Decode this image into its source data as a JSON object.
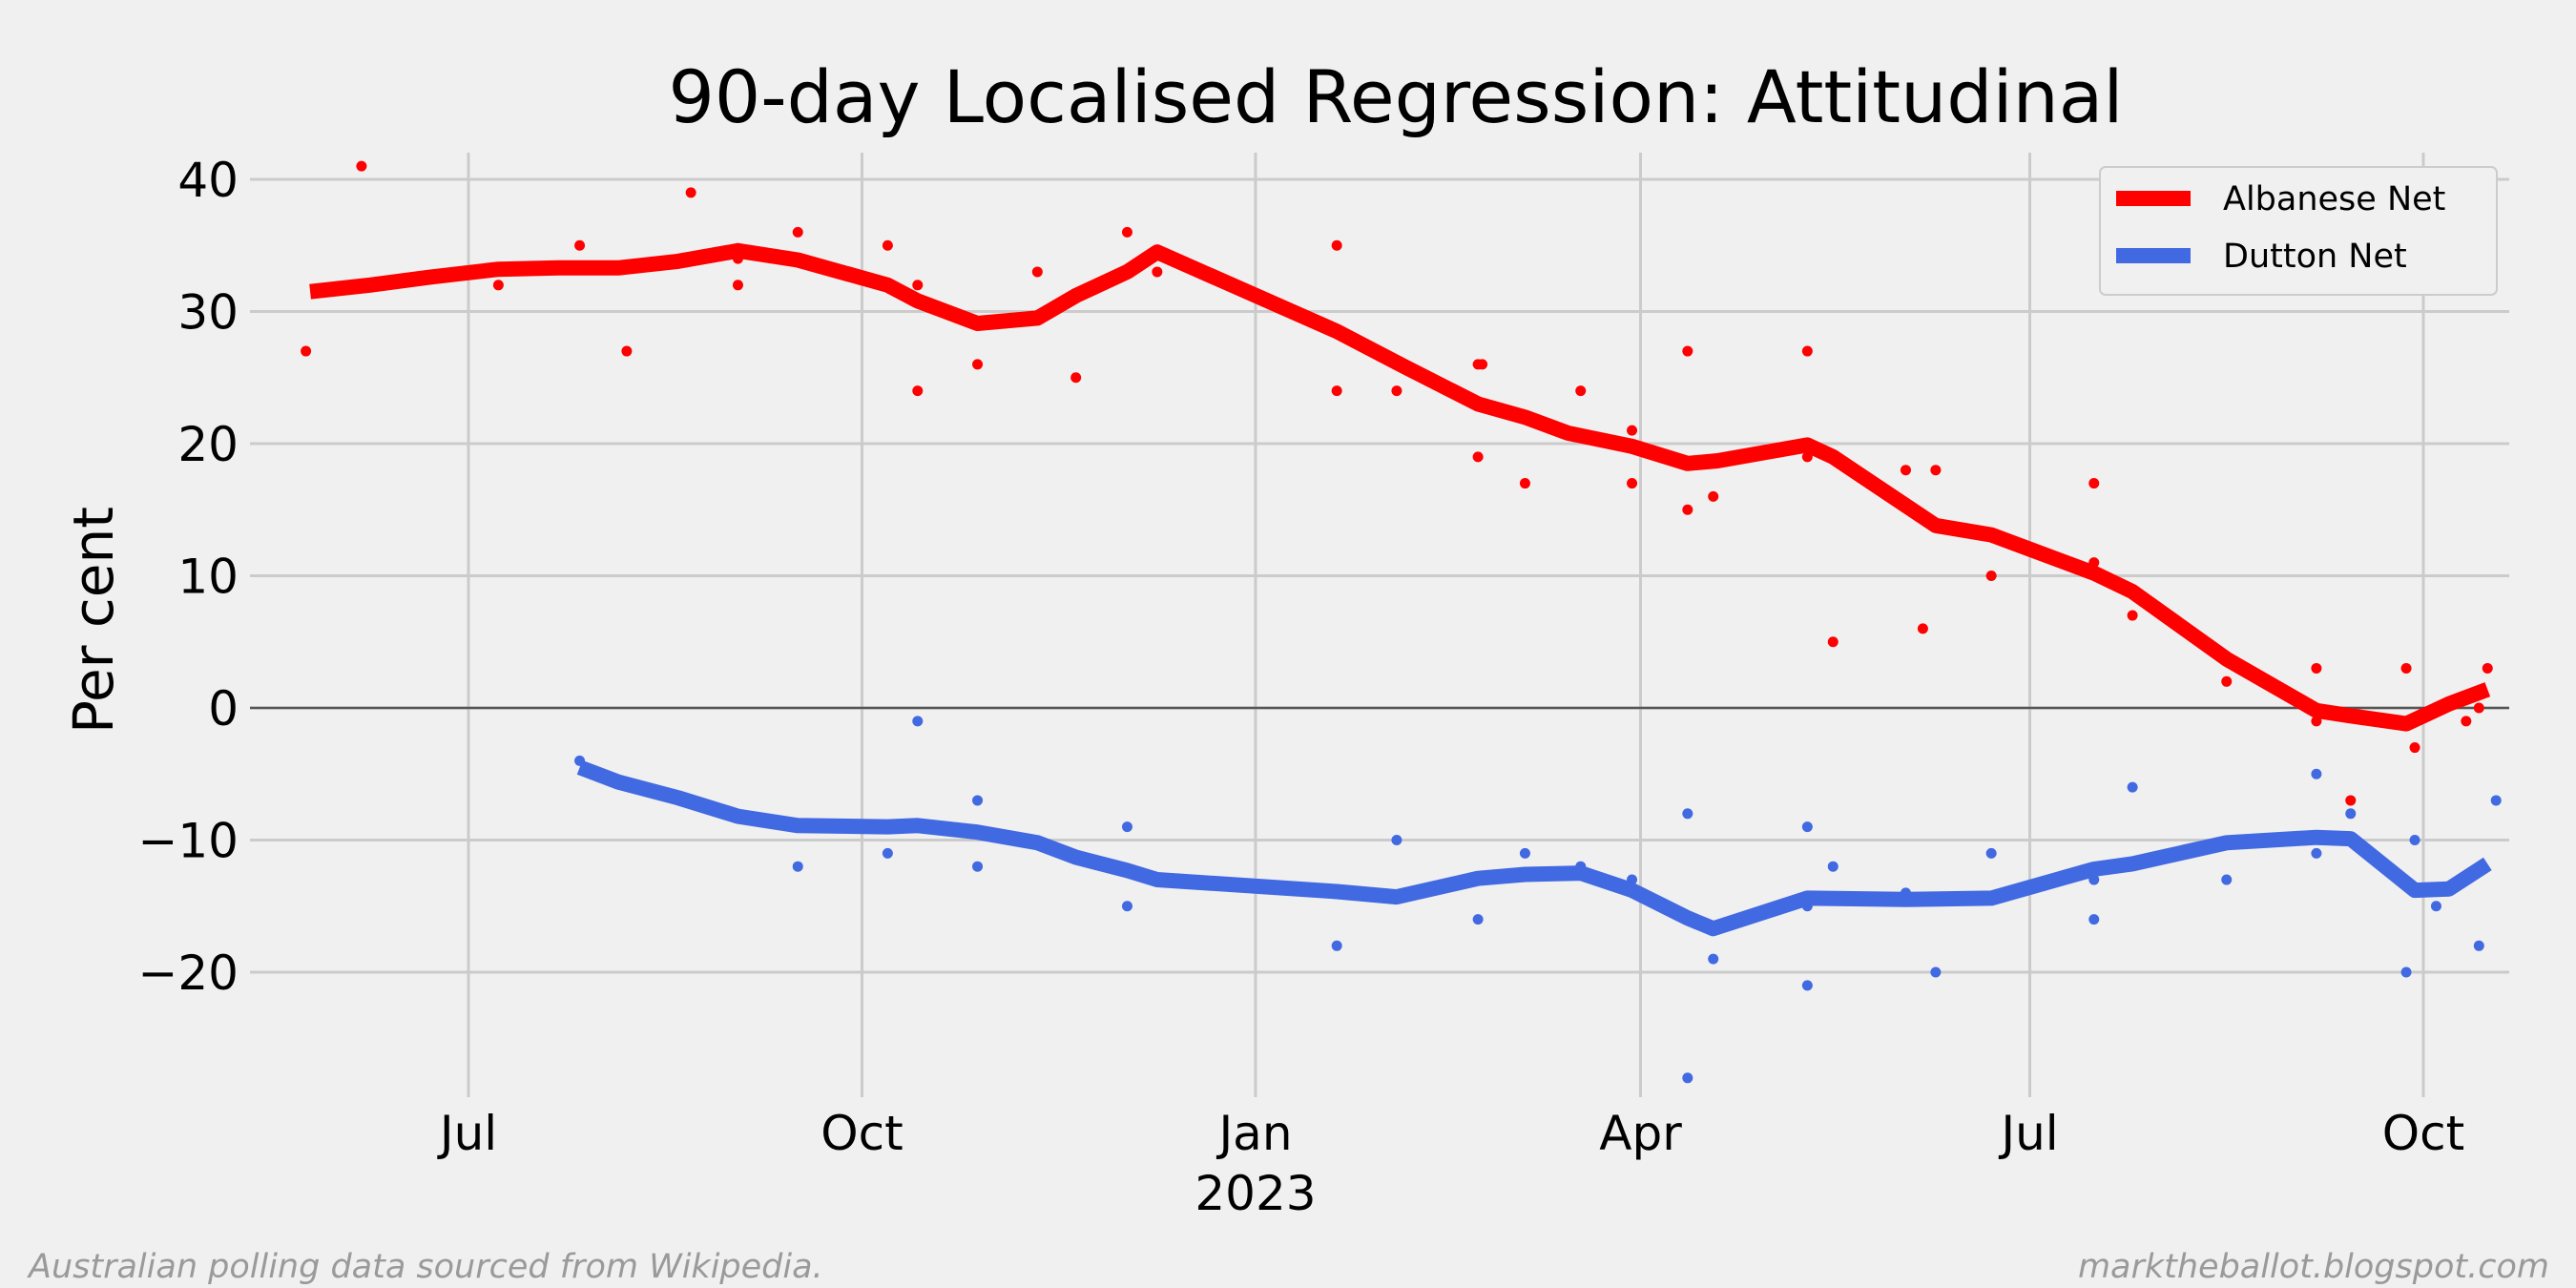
{
  "chart_data": {
    "type": "line",
    "title": "90-day Localised Regression: Attitudinal",
    "xlabel": "",
    "ylabel": "Per cent",
    "xlim": [
      "2022-05-24",
      "2023-10-20"
    ],
    "ylim": [
      -29,
      42
    ],
    "yticks": [
      40,
      30,
      20,
      10,
      0,
      -10,
      -20
    ],
    "ytick_labels": [
      "40",
      "30",
      "20",
      "10",
      "0",
      "−10",
      "−20"
    ],
    "xticks": [
      {
        "date": "2022-07-01",
        "label": "Jul",
        "sublabel": ""
      },
      {
        "date": "2022-10-01",
        "label": "Oct",
        "sublabel": ""
      },
      {
        "date": "2023-01-01",
        "label": "Jan",
        "sublabel": "2023"
      },
      {
        "date": "2023-04-01",
        "label": "Apr",
        "sublabel": ""
      },
      {
        "date": "2023-07-01",
        "label": "Jul",
        "sublabel": ""
      },
      {
        "date": "2023-10-01",
        "label": "Oct",
        "sublabel": ""
      }
    ],
    "grid": true,
    "legend_position": "top-right",
    "zero_line": true,
    "series": [
      {
        "name": "Albanese Net",
        "color": "#ff0000",
        "line": [
          [
            "2022-05-25",
            31.5
          ],
          [
            "2022-06-08",
            32.0
          ],
          [
            "2022-06-22",
            32.6
          ],
          [
            "2022-07-08",
            33.2
          ],
          [
            "2022-07-22",
            33.3
          ],
          [
            "2022-08-05",
            33.3
          ],
          [
            "2022-08-19",
            33.8
          ],
          [
            "2022-09-02",
            34.6
          ],
          [
            "2022-09-16",
            33.9
          ],
          [
            "2022-10-07",
            32.0
          ],
          [
            "2022-10-14",
            30.8
          ],
          [
            "2022-10-28",
            29.1
          ],
          [
            "2022-11-11",
            29.5
          ],
          [
            "2022-11-20",
            31.2
          ],
          [
            "2022-12-02",
            33.0
          ],
          [
            "2022-12-09",
            34.5
          ],
          [
            "2023-01-20",
            28.5
          ],
          [
            "2023-02-05",
            25.8
          ],
          [
            "2023-02-22",
            23.0
          ],
          [
            "2023-03-05",
            22.0
          ],
          [
            "2023-03-15",
            20.8
          ],
          [
            "2023-03-30",
            19.8
          ],
          [
            "2023-04-12",
            18.5
          ],
          [
            "2023-04-19",
            18.7
          ],
          [
            "2023-05-10",
            19.9
          ],
          [
            "2023-05-16",
            19.0
          ],
          [
            "2023-06-09",
            13.8
          ],
          [
            "2023-06-22",
            13.1
          ],
          [
            "2023-07-16",
            10.2
          ],
          [
            "2023-07-25",
            8.8
          ],
          [
            "2023-08-16",
            3.7
          ],
          [
            "2023-09-06",
            -0.2
          ],
          [
            "2023-09-14",
            -0.6
          ],
          [
            "2023-09-27",
            -1.2
          ],
          [
            "2023-10-07",
            0.3
          ],
          [
            "2023-10-16",
            1.4
          ]
        ],
        "points": [
          [
            "2022-05-24",
            27
          ],
          [
            "2022-06-06",
            41
          ],
          [
            "2022-07-08",
            32
          ],
          [
            "2022-07-27",
            35
          ],
          [
            "2022-08-07",
            27
          ],
          [
            "2022-08-22",
            39
          ],
          [
            "2022-09-02",
            34
          ],
          [
            "2022-09-02",
            32
          ],
          [
            "2022-09-16",
            36
          ],
          [
            "2022-10-07",
            35
          ],
          [
            "2022-10-14",
            32
          ],
          [
            "2022-10-14",
            24
          ],
          [
            "2022-10-28",
            26
          ],
          [
            "2022-11-11",
            33
          ],
          [
            "2022-11-20",
            25
          ],
          [
            "2022-12-02",
            36
          ],
          [
            "2022-12-09",
            33
          ],
          [
            "2023-01-20",
            35
          ],
          [
            "2023-01-20",
            24
          ],
          [
            "2023-02-03",
            24
          ],
          [
            "2023-02-22",
            26
          ],
          [
            "2023-02-23",
            26
          ],
          [
            "2023-02-22",
            19
          ],
          [
            "2023-03-05",
            17
          ],
          [
            "2023-03-18",
            24
          ],
          [
            "2023-03-30",
            21
          ],
          [
            "2023-03-30",
            17
          ],
          [
            "2023-04-12",
            27
          ],
          [
            "2023-04-12",
            15
          ],
          [
            "2023-04-18",
            16
          ],
          [
            "2023-05-10",
            27
          ],
          [
            "2023-05-10",
            19
          ],
          [
            "2023-05-16",
            5
          ],
          [
            "2023-06-02",
            18
          ],
          [
            "2023-06-09",
            18
          ],
          [
            "2023-06-06",
            6
          ],
          [
            "2023-06-22",
            10
          ],
          [
            "2023-07-16",
            17
          ],
          [
            "2023-07-16",
            11
          ],
          [
            "2023-07-25",
            7
          ],
          [
            "2023-08-16",
            2
          ],
          [
            "2023-09-06",
            3
          ],
          [
            "2023-09-06",
            -1
          ],
          [
            "2023-09-14",
            -7
          ],
          [
            "2023-09-27",
            3
          ],
          [
            "2023-09-29",
            -3
          ],
          [
            "2023-10-11",
            -1
          ],
          [
            "2023-10-16",
            3
          ],
          [
            "2023-10-14",
            0
          ]
        ]
      },
      {
        "name": "Dutton Net",
        "color": "#4169e1",
        "line": [
          [
            "2022-07-27",
            -4.5
          ],
          [
            "2022-08-05",
            -5.6
          ],
          [
            "2022-08-19",
            -6.8
          ],
          [
            "2022-09-02",
            -8.2
          ],
          [
            "2022-09-16",
            -8.9
          ],
          [
            "2022-10-07",
            -9.0
          ],
          [
            "2022-10-14",
            -8.9
          ],
          [
            "2022-10-28",
            -9.4
          ],
          [
            "2022-11-11",
            -10.2
          ],
          [
            "2022-11-20",
            -11.3
          ],
          [
            "2022-12-02",
            -12.3
          ],
          [
            "2022-12-09",
            -13.0
          ],
          [
            "2023-01-20",
            -13.9
          ],
          [
            "2023-02-03",
            -14.3
          ],
          [
            "2023-02-22",
            -12.9
          ],
          [
            "2023-03-05",
            -12.6
          ],
          [
            "2023-03-18",
            -12.5
          ],
          [
            "2023-03-30",
            -13.8
          ],
          [
            "2023-04-12",
            -15.9
          ],
          [
            "2023-04-18",
            -16.7
          ],
          [
            "2023-05-10",
            -14.4
          ],
          [
            "2023-06-02",
            -14.5
          ],
          [
            "2023-06-22",
            -14.4
          ],
          [
            "2023-07-16",
            -12.2
          ],
          [
            "2023-07-25",
            -11.8
          ],
          [
            "2023-08-16",
            -10.2
          ],
          [
            "2023-09-06",
            -9.8
          ],
          [
            "2023-09-14",
            -9.9
          ],
          [
            "2023-09-29",
            -13.8
          ],
          [
            "2023-10-07",
            -13.7
          ],
          [
            "2023-10-16",
            -11.8
          ]
        ],
        "points": [
          [
            "2022-07-27",
            -4
          ],
          [
            "2022-09-16",
            -12
          ],
          [
            "2022-10-07",
            -11
          ],
          [
            "2022-10-14",
            -1
          ],
          [
            "2022-10-28",
            -7
          ],
          [
            "2022-10-28",
            -12
          ],
          [
            "2022-12-02",
            -9
          ],
          [
            "2022-12-02",
            -15
          ],
          [
            "2023-01-20",
            -18
          ],
          [
            "2023-02-03",
            -10
          ],
          [
            "2023-02-22",
            -16
          ],
          [
            "2023-03-05",
            -11
          ],
          [
            "2023-03-18",
            -12
          ],
          [
            "2023-03-30",
            -13
          ],
          [
            "2023-04-12",
            -8
          ],
          [
            "2023-04-12",
            -28
          ],
          [
            "2023-04-18",
            -19
          ],
          [
            "2023-05-10",
            -9
          ],
          [
            "2023-05-10",
            -15
          ],
          [
            "2023-05-10",
            -21
          ],
          [
            "2023-05-16",
            -12
          ],
          [
            "2023-06-02",
            -14
          ],
          [
            "2023-06-09",
            -20
          ],
          [
            "2023-06-22",
            -11
          ],
          [
            "2023-07-16",
            -13
          ],
          [
            "2023-07-16",
            -16
          ],
          [
            "2023-07-25",
            -6
          ],
          [
            "2023-08-16",
            -13
          ],
          [
            "2023-09-06",
            -5
          ],
          [
            "2023-09-06",
            -11
          ],
          [
            "2023-09-14",
            -8
          ],
          [
            "2023-09-27",
            -20
          ],
          [
            "2023-09-29",
            -10
          ],
          [
            "2023-10-04",
            -15
          ],
          [
            "2023-10-14",
            -18
          ],
          [
            "2023-10-18",
            -7
          ]
        ]
      }
    ]
  },
  "footnotes": {
    "left": "Australian polling data sourced from Wikipedia.",
    "right": "marktheballot.blogspot.com"
  }
}
